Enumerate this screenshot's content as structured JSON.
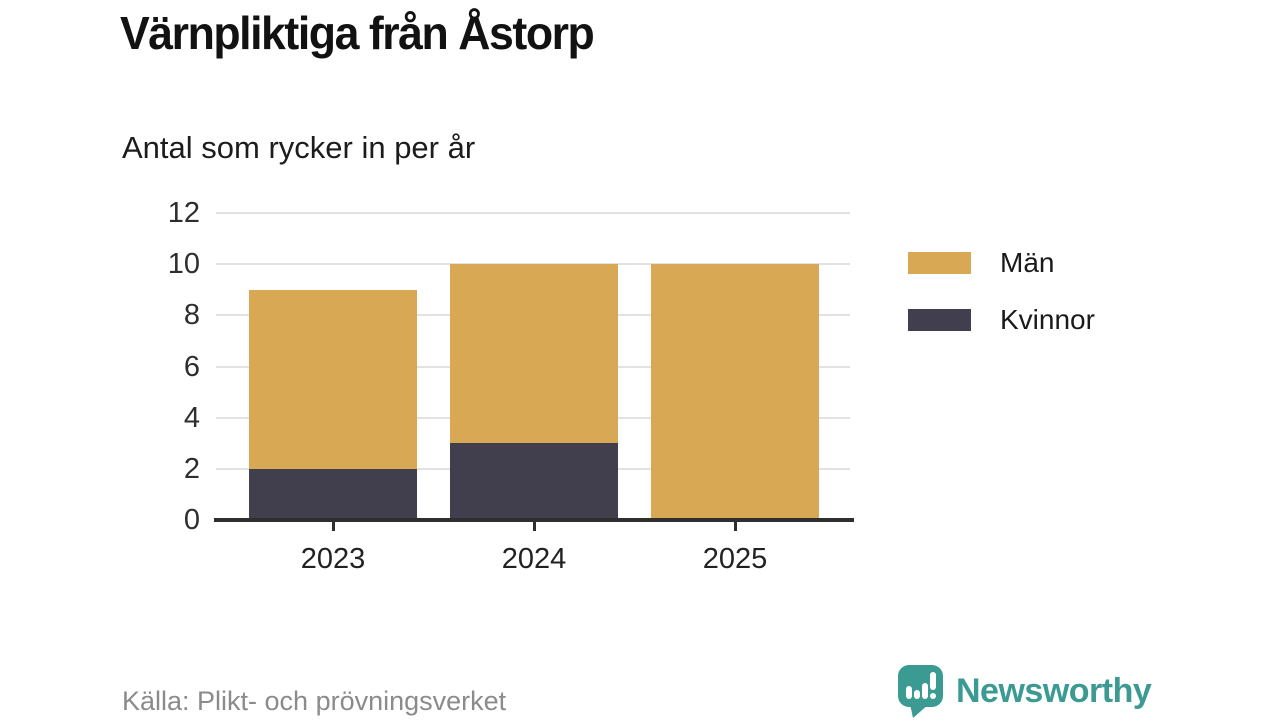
{
  "header": {
    "title": "Värnpliktiga från Åstorp",
    "subtitle": "Antal som rycker in per år"
  },
  "chart_data": {
    "type": "bar",
    "stacked": true,
    "title": "Värnpliktiga från Åstorp",
    "subtitle": "Antal som rycker in per år",
    "categories": [
      "2023",
      "2024",
      "2025"
    ],
    "series": [
      {
        "name": "Män",
        "color": "#d9a855",
        "values": [
          7,
          7,
          10
        ]
      },
      {
        "name": "Kvinnor",
        "color": "#413f4d",
        "values": [
          2,
          3,
          0
        ]
      }
    ],
    "stack_totals": [
      9,
      10,
      10
    ],
    "xlabel": "",
    "ylabel": "",
    "ylim": [
      0,
      12
    ],
    "yticks": [
      0,
      2,
      4,
      6,
      8,
      10,
      12
    ],
    "grid": true,
    "legend_position": "right"
  },
  "footer": {
    "source": "Källa: Plikt- och prövningsverket",
    "brand": "Newsworthy",
    "brand_icon": "newsworthy-speech-bubble-barchart-icon"
  },
  "colors": {
    "men": "#d9a855",
    "women": "#413f4d",
    "gridline": "#e2e2e2",
    "axis": "#2f2f2f",
    "tick_text": "#2e2e2e",
    "muted_text": "#8b8b8b",
    "brand_teal": "#3b9a91"
  }
}
